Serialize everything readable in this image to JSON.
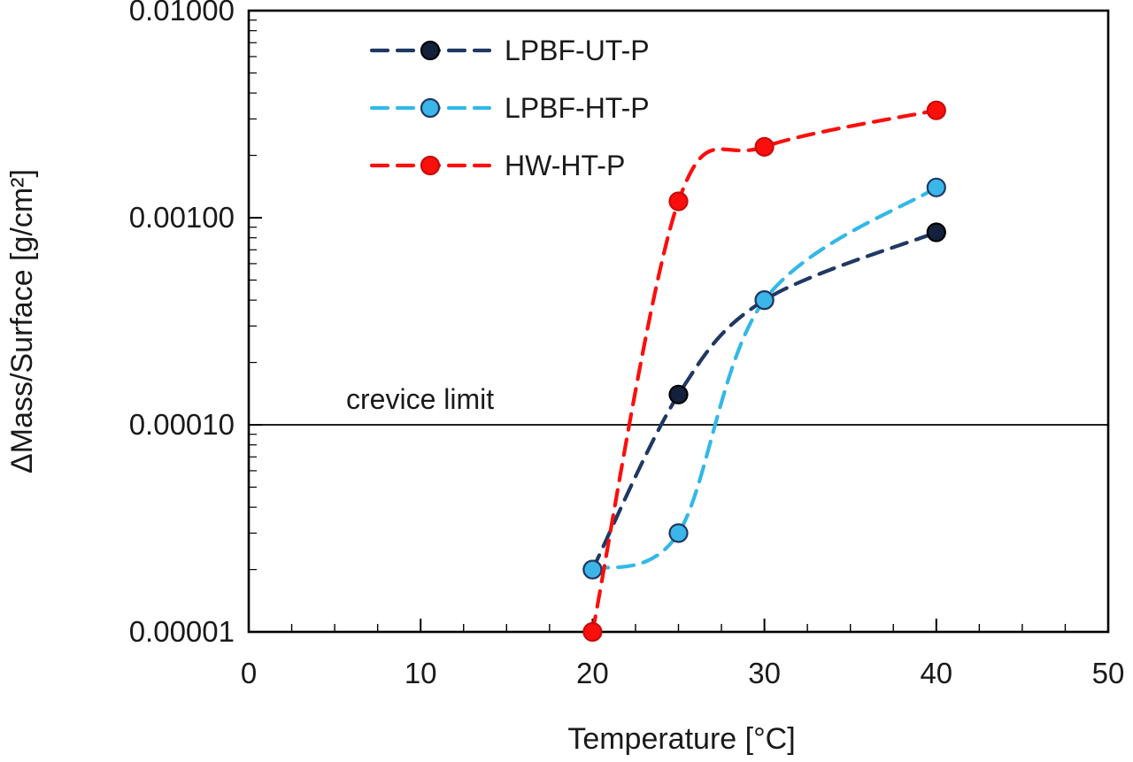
{
  "chart_data": {
    "type": "line",
    "title": "",
    "xlabel": "Temperature [°C]",
    "ylabel": "ΔMass/Surface [g/cm²]",
    "grid": false,
    "legend_position": "top-left-inside",
    "x_axis": {
      "min": 0,
      "max": 50,
      "major_ticks": [
        0,
        10,
        20,
        30,
        40,
        50
      ],
      "minor_step": 2.5
    },
    "y_axis": {
      "scale": "log",
      "min": 1e-05,
      "max": 0.01,
      "major_ticks": [
        {
          "value": 0.01,
          "label": "0.01000"
        },
        {
          "value": 0.001,
          "label": "0.00100"
        },
        {
          "value": 0.0001,
          "label": "0.00010"
        },
        {
          "value": 1e-05,
          "label": "0.00001"
        }
      ]
    },
    "annotation": {
      "label": "crevice limit",
      "y_value": 0.0001
    },
    "series": [
      {
        "name": "LPBF-UT-P",
        "color": "#1f3864",
        "marker_fill": "#14213c",
        "marker_edge": "#000000",
        "x": [
          20,
          25,
          30,
          40
        ],
        "y": [
          2e-05,
          0.00014,
          0.0004,
          0.00085
        ]
      },
      {
        "name": "LPBF-HT-P",
        "color": "#33b8e8",
        "marker_fill": "#3ab7e8",
        "marker_edge": "#1f3864",
        "x": [
          20,
          25,
          30,
          40
        ],
        "y": [
          2e-05,
          3e-05,
          0.0004,
          0.0014
        ]
      },
      {
        "name": "HW-HT-P",
        "color": "#fa0f0c",
        "marker_fill": "#fa0f0c",
        "marker_edge": "#c90c0a",
        "x": [
          20,
          25,
          30,
          40
        ],
        "y": [
          1e-05,
          0.0012,
          0.0022,
          0.0033
        ]
      }
    ]
  }
}
